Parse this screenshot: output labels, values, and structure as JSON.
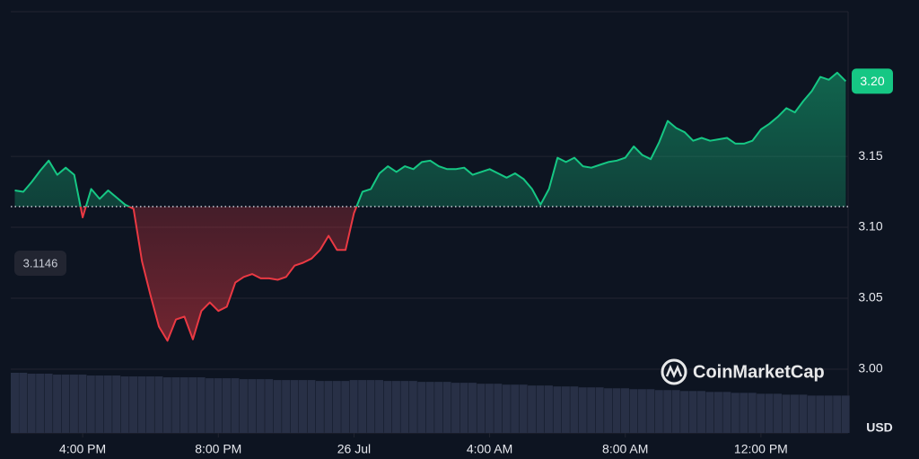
{
  "chart_data": {
    "type": "line",
    "brand": "CoinMarketCap",
    "currency": "USD",
    "baseline": 3.1146,
    "last_value_label": "3.20",
    "up_color": "#16c784",
    "down_color": "#ea3943",
    "xlim": [
      13.88,
      38.57
    ],
    "xticks": [
      {
        "value": 16,
        "label": "4:00 PM"
      },
      {
        "value": 20,
        "label": "8:00 PM"
      },
      {
        "value": 24,
        "label": "26 Jul"
      },
      {
        "value": 28,
        "label": "4:00 AM"
      },
      {
        "value": 32,
        "label": "8:00 AM"
      },
      {
        "value": 36,
        "label": "12:00 PM"
      }
    ],
    "ylim": [
      2.955,
      3.252
    ],
    "yticks": [
      {
        "value": 3,
        "label": "3.00"
      },
      3.05,
      {
        "value": 3.1,
        "label": "3.10"
      },
      3.15
    ],
    "grid": true,
    "x": [
      14,
      14.25,
      14.5,
      14.75,
      15,
      15.25,
      15.5,
      15.75,
      16,
      16.25,
      16.5,
      16.75,
      17,
      17.25,
      17.5,
      17.75,
      18,
      18.25,
      18.5,
      18.75,
      19,
      19.25,
      19.5,
      19.75,
      20,
      20.25,
      20.5,
      20.75,
      21,
      21.25,
      21.5,
      21.75,
      22,
      22.25,
      22.5,
      22.75,
      23,
      23.25,
      23.5,
      23.75,
      24,
      24.25,
      24.5,
      24.75,
      25,
      25.25,
      25.5,
      25.75,
      26,
      26.25,
      26.5,
      26.75,
      27,
      27.25,
      27.5,
      27.75,
      28,
      28.25,
      28.5,
      28.75,
      29,
      29.25,
      29.5,
      29.75,
      30,
      30.25,
      30.5,
      30.75,
      31,
      31.25,
      31.5,
      31.75,
      32,
      32.25,
      32.5,
      32.75,
      33,
      33.25,
      33.5,
      33.75,
      34,
      34.25,
      34.5,
      34.75,
      35,
      35.25,
      35.5,
      35.75,
      36,
      36.25,
      36.5,
      36.75,
      37,
      37.25,
      37.5,
      37.75,
      38,
      38.25,
      38.5
    ],
    "values": [
      3.126,
      3.125,
      3.132,
      3.14,
      3.147,
      3.137,
      3.142,
      3.137,
      3.107,
      3.127,
      3.12,
      3.126,
      3.121,
      3.116,
      3.113,
      3.076,
      3.052,
      3.03,
      3.02,
      3.035,
      3.037,
      3.021,
      3.041,
      3.047,
      3.041,
      3.044,
      3.061,
      3.065,
      3.067,
      3.064,
      3.064,
      3.063,
      3.065,
      3.073,
      3.075,
      3.078,
      3.084,
      3.094,
      3.084,
      3.084,
      3.11,
      3.125,
      3.127,
      3.138,
      3.143,
      3.139,
      3.143,
      3.141,
      3.146,
      3.147,
      3.143,
      3.141,
      3.141,
      3.142,
      3.137,
      3.139,
      3.141,
      3.138,
      3.135,
      3.138,
      3.134,
      3.127,
      3.116,
      3.127,
      3.149,
      3.146,
      3.149,
      3.143,
      3.142,
      3.144,
      3.146,
      3.147,
      3.149,
      3.157,
      3.151,
      3.148,
      3.16,
      3.175,
      3.17,
      3.167,
      3.161,
      3.163,
      3.161,
      3.162,
      3.163,
      3.159,
      3.159,
      3.161,
      3.169,
      3.173,
      3.178,
      3.184,
      3.181,
      3.189,
      3.196,
      3.206,
      3.204,
      3.209,
      3.203
    ],
    "volume": [
      66,
      66,
      65,
      65,
      65,
      64,
      64,
      64,
      64,
      63,
      63,
      63,
      63,
      62,
      62,
      62,
      62,
      62,
      61,
      61,
      61,
      61,
      61,
      60,
      60,
      60,
      60,
      59,
      59,
      59,
      59,
      58,
      58,
      58,
      58,
      58,
      57,
      57,
      57,
      57,
      58,
      58,
      58,
      58,
      57,
      57,
      57,
      57,
      56,
      56,
      56,
      56,
      55,
      55,
      55,
      54,
      54,
      54,
      53,
      53,
      53,
      52,
      52,
      52,
      51,
      51,
      51,
      50,
      50,
      50,
      49,
      49,
      49,
      48,
      48,
      48,
      47,
      47,
      47,
      46,
      46,
      46,
      45,
      45,
      45,
      44,
      44,
      44,
      43,
      43,
      43,
      42,
      42,
      42,
      41,
      41,
      41,
      41,
      41
    ]
  }
}
